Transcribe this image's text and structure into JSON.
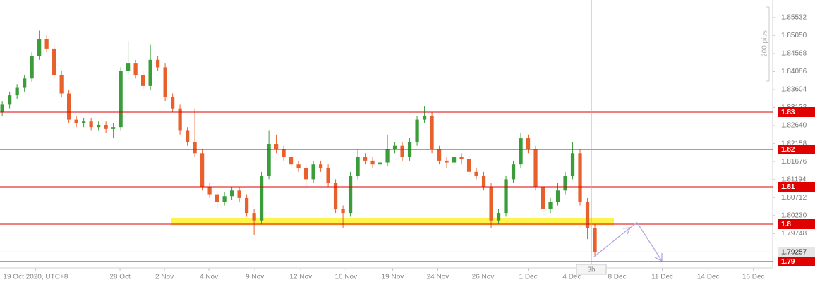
{
  "chart_data": {
    "type": "candlestick",
    "timeframe": "3h",
    "open": [
      1.83,
      1.832,
      1.8345,
      1.8365,
      1.839,
      1.845,
      1.8495,
      1.847,
      1.84,
      1.835,
      1.828,
      1.827,
      1.8275,
      1.826,
      1.8265,
      1.8255,
      1.826,
      1.841,
      1.843,
      1.84,
      1.837,
      1.844,
      1.842,
      1.834,
      1.831,
      1.825,
      1.822,
      1.819,
      1.81,
      1.808,
      1.806,
      1.8075,
      1.809,
      1.807,
      1.803,
      1.801,
      1.813,
      1.8215,
      1.82,
      1.818,
      1.816,
      1.815,
      1.812,
      1.816,
      1.815,
      1.811,
      1.804,
      1.803,
      1.813,
      1.818,
      1.817,
      1.816,
      1.8165,
      1.82,
      1.821,
      1.818,
      1.822,
      1.828,
      1.829,
      1.82,
      1.817,
      1.8165,
      1.818,
      1.8175,
      1.814,
      1.813,
      1.81,
      1.801,
      1.803,
      1.812,
      1.816,
      1.823,
      1.82,
      1.81,
      1.804,
      1.806,
      1.809,
      1.813,
      1.819,
      1.806,
      1.799
    ],
    "high": [
      1.833,
      1.8355,
      1.8375,
      1.84,
      1.846,
      1.8518,
      1.8505,
      1.848,
      1.841,
      1.836,
      1.829,
      1.8285,
      1.8285,
      1.8275,
      1.8275,
      1.827,
      1.842,
      1.849,
      1.844,
      1.841,
      1.848,
      1.845,
      1.843,
      1.835,
      1.832,
      1.826,
      1.831,
      1.82,
      1.811,
      1.809,
      1.8085,
      1.81,
      1.81,
      1.808,
      1.804,
      1.814,
      1.825,
      1.824,
      1.821,
      1.819,
      1.817,
      1.816,
      1.817,
      1.817,
      1.816,
      1.812,
      1.805,
      1.814,
      1.82,
      1.819,
      1.818,
      1.8175,
      1.824,
      1.822,
      1.822,
      1.823,
      1.829,
      1.8315,
      1.83,
      1.821,
      1.818,
      1.819,
      1.819,
      1.8185,
      1.815,
      1.814,
      1.811,
      1.804,
      1.813,
      1.817,
      1.8245,
      1.824,
      1.821,
      1.811,
      1.807,
      1.811,
      1.814,
      1.822,
      1.82,
      1.807,
      1.8
    ],
    "low": [
      1.829,
      1.831,
      1.8335,
      1.8355,
      1.838,
      1.844,
      1.846,
      1.839,
      1.834,
      1.827,
      1.826,
      1.826,
      1.825,
      1.825,
      1.8245,
      1.823,
      1.825,
      1.84,
      1.839,
      1.836,
      1.836,
      1.841,
      1.833,
      1.83,
      1.824,
      1.821,
      1.818,
      1.809,
      1.807,
      1.804,
      1.805,
      1.8065,
      1.806,
      1.802,
      1.797,
      1.8,
      1.812,
      1.819,
      1.817,
      1.815,
      1.814,
      1.81,
      1.811,
      1.814,
      1.81,
      1.803,
      1.799,
      1.802,
      1.812,
      1.816,
      1.815,
      1.815,
      1.8155,
      1.819,
      1.817,
      1.817,
      1.821,
      1.827,
      1.819,
      1.816,
      1.815,
      1.8155,
      1.816,
      1.813,
      1.812,
      1.809,
      1.799,
      1.8,
      1.802,
      1.811,
      1.815,
      1.819,
      1.809,
      1.802,
      1.803,
      1.805,
      1.808,
      1.812,
      1.805,
      1.796,
      1.7915
    ],
    "close": [
      1.832,
      1.8345,
      1.8365,
      1.839,
      1.845,
      1.8495,
      1.847,
      1.84,
      1.835,
      1.828,
      1.827,
      1.8275,
      1.826,
      1.8265,
      1.8255,
      1.826,
      1.841,
      1.843,
      1.84,
      1.837,
      1.844,
      1.842,
      1.834,
      1.831,
      1.825,
      1.822,
      1.819,
      1.81,
      1.808,
      1.806,
      1.8075,
      1.809,
      1.807,
      1.803,
      1.801,
      1.813,
      1.8215,
      1.82,
      1.818,
      1.816,
      1.815,
      1.812,
      1.816,
      1.815,
      1.811,
      1.804,
      1.803,
      1.813,
      1.818,
      1.817,
      1.816,
      1.8165,
      1.82,
      1.821,
      1.818,
      1.822,
      1.828,
      1.829,
      1.82,
      1.817,
      1.8165,
      1.818,
      1.8175,
      1.814,
      1.813,
      1.81,
      1.801,
      1.803,
      1.812,
      1.816,
      1.823,
      1.82,
      1.81,
      1.804,
      1.806,
      1.809,
      1.813,
      1.819,
      1.806,
      1.799,
      1.79257
    ],
    "up_color": "#3a9d3a",
    "down_color": "#e8612c",
    "xlim": [
      -0.3,
      104
    ],
    "xticks": [
      {
        "value": 4.5,
        "label": "19 Oct 2020, UTC+8"
      },
      {
        "value": 15.9,
        "label": "28 Oct"
      },
      {
        "value": 21.9,
        "label": "2 Nov"
      },
      {
        "value": 27.9,
        "label": "4 Nov"
      },
      {
        "value": 34.1,
        "label": "9 Nov"
      },
      {
        "value": 40.3,
        "label": "12 Nov"
      },
      {
        "value": 46.4,
        "label": "16 Nov"
      },
      {
        "value": 52.7,
        "label": "19 Nov"
      },
      {
        "value": 58.8,
        "label": "24 Nov"
      },
      {
        "value": 64.9,
        "label": "26 Nov"
      },
      {
        "value": 71.0,
        "label": "1 Dec"
      },
      {
        "value": 76.9,
        "label": "4 Dec"
      },
      {
        "value": 83.0,
        "label": "8 Dec"
      },
      {
        "value": 89.1,
        "label": "11 Dec"
      },
      {
        "value": 95.3,
        "label": "14 Dec"
      },
      {
        "value": 101.4,
        "label": "16 Dec"
      }
    ],
    "ylim": [
      1.7883,
      1.86
    ],
    "yticks": [
      1.85532,
      {
        "value": 1.8505,
        "label": "1.85050"
      },
      1.84568,
      1.84086,
      1.83604,
      1.83122,
      {
        "value": 1.8264,
        "label": "1.82640"
      },
      1.82158,
      1.81676,
      1.81194,
      1.80712,
      {
        "value": 1.8023,
        "label": "1.80230"
      },
      1.79748
    ],
    "levels": [
      1.83,
      1.82,
      1.81,
      1.8,
      1.79
    ],
    "level_color": "#e00000",
    "zone": [
      1.7997,
      1.8017
    ],
    "zone_color": "#fff23a",
    "current_price": 1.79257,
    "scale_label": "200 pips"
  }
}
